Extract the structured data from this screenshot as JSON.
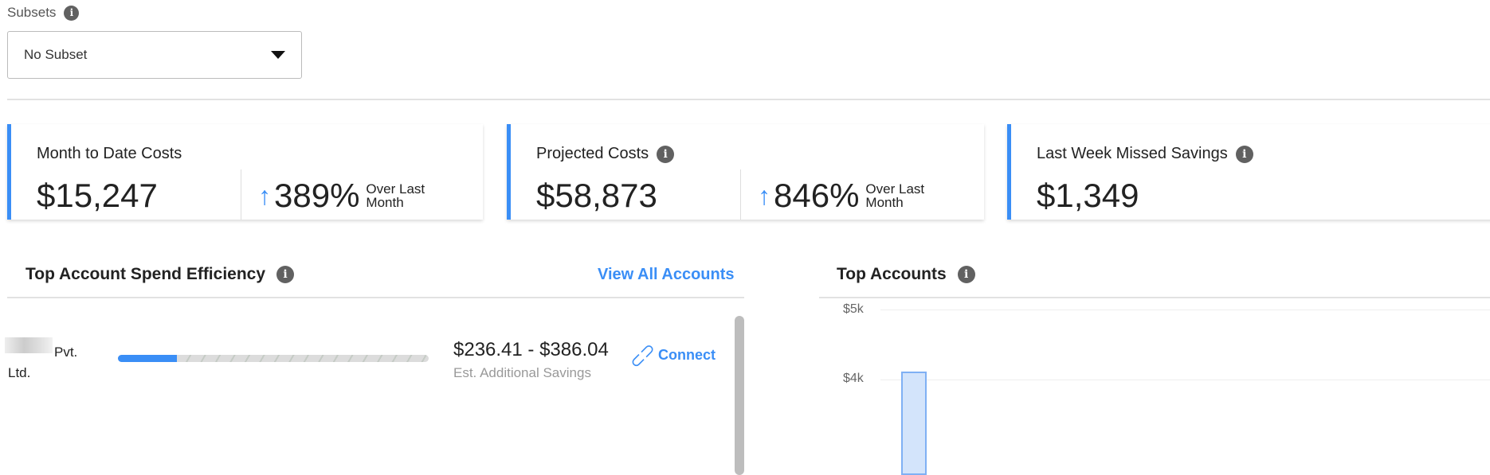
{
  "subsets": {
    "label": "Subsets",
    "selected": "No Subset"
  },
  "cards": [
    {
      "title": "Month to Date Costs",
      "value": "$15,247",
      "change": "389%",
      "change_label": "Over Last Month",
      "direction": "up"
    },
    {
      "title": "Projected Costs",
      "value": "$58,873",
      "change": "846%",
      "change_label": "Over Last Month",
      "direction": "up"
    },
    {
      "title": "Last Week Missed Savings",
      "value": "$1,349"
    }
  ],
  "efficiency": {
    "title": "Top Account Spend Efficiency",
    "view_all": "View All Accounts",
    "rows": [
      {
        "name": "Pvt. Ltd.",
        "efficiency_percent": 19,
        "savings": "$236.41 - $386.04",
        "savings_label": "Est. Additional Savings",
        "action": "Connect"
      }
    ]
  },
  "top_accounts": {
    "title": "Top Accounts",
    "y_ticks": [
      "$5k",
      "$4k"
    ]
  },
  "colors": {
    "accent": "#3a8ef6"
  }
}
